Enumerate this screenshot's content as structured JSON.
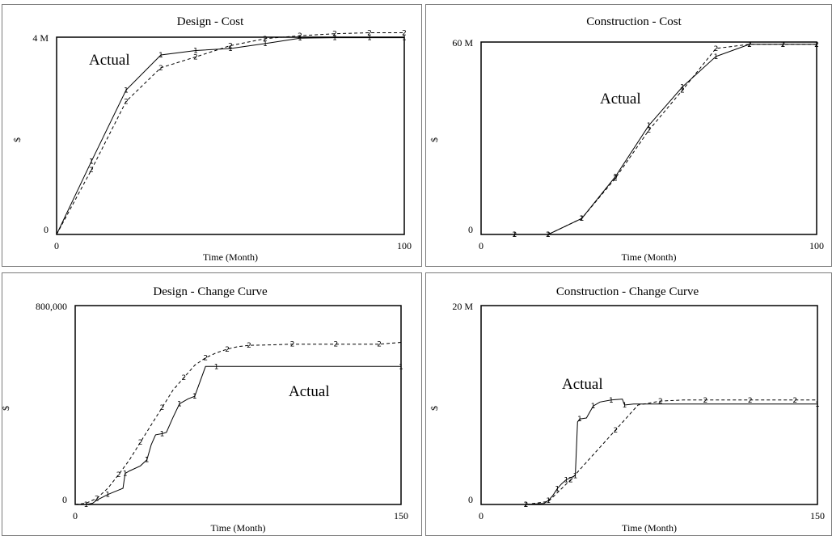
{
  "chart_data": [
    {
      "type": "line",
      "title": "Design - Cost",
      "xlabel": "Time (Month)",
      "ylabel": "$",
      "xlim": [
        0,
        100
      ],
      "ylim": [
        0,
        4000000
      ],
      "x_tick_labels": [
        "0",
        "100"
      ],
      "y_tick_labels": [
        "0",
        "4 M"
      ],
      "annotation": "Actual",
      "series": [
        {
          "marker": "1",
          "style": "solid",
          "x": [
            0,
            10,
            20,
            30,
            40,
            50,
            60,
            70,
            80,
            90,
            100
          ],
          "y": [
            0,
            1480000,
            2930000,
            3640000,
            3730000,
            3770000,
            3870000,
            3980000,
            3990000,
            3990000,
            3990000
          ]
        },
        {
          "marker": "2",
          "style": "dashed",
          "x": [
            0,
            10,
            20,
            30,
            40,
            50,
            60,
            70,
            80,
            90,
            100
          ],
          "y": [
            0,
            1310000,
            2700000,
            3380000,
            3600000,
            3830000,
            3970000,
            4030000,
            4070000,
            4090000,
            4090000
          ]
        }
      ]
    },
    {
      "type": "line",
      "title": "Construction - Cost",
      "xlabel": "Time (Month)",
      "ylabel": "$",
      "xlim": [
        0,
        100
      ],
      "ylim": [
        0,
        60000000
      ],
      "x_tick_labels": [
        "0",
        "100"
      ],
      "y_tick_labels": [
        "0",
        "60 M"
      ],
      "annotation": "Actual",
      "series": [
        {
          "marker": "1",
          "style": "solid",
          "x": [
            0,
            10,
            20,
            30,
            40,
            50,
            60,
            70,
            80,
            90,
            100
          ],
          "y": [
            0,
            0,
            0,
            5000000,
            18000000,
            34000000,
            46000000,
            55500000,
            59300000,
            59300000,
            59300000
          ]
        },
        {
          "marker": "2",
          "style": "dashed",
          "x": [
            0,
            10,
            20,
            30,
            40,
            50,
            60,
            70,
            80,
            90,
            100
          ],
          "y": [
            0,
            0,
            0,
            5000000,
            17500000,
            32500000,
            45000000,
            58000000,
            59300000,
            59300000,
            59300000
          ]
        }
      ]
    },
    {
      "type": "line",
      "title": "Design - Change Curve",
      "xlabel": "Time (Month)",
      "ylabel": "$",
      "xlim": [
        0,
        150
      ],
      "ylim": [
        0,
        800000
      ],
      "x_tick_labels": [
        "0",
        "150"
      ],
      "y_tick_labels": [
        "0",
        "800,000"
      ],
      "annotation": "Actual",
      "series": [
        {
          "marker": "1",
          "style": "solid",
          "x": [
            0,
            5,
            8,
            10,
            15,
            20,
            22,
            23,
            25,
            30,
            33,
            35,
            37,
            40,
            42,
            45,
            48,
            50,
            52,
            55,
            60,
            61,
            65,
            70,
            75,
            150
          ],
          "y": [
            0,
            0,
            5000,
            18000,
            40000,
            58000,
            65000,
            125000,
            135000,
            155000,
            180000,
            240000,
            280000,
            285000,
            290000,
            350000,
            405000,
            415000,
            425000,
            435000,
            555000,
            555000,
            555000,
            555000,
            555000,
            555000
          ]
        },
        {
          "marker": "2",
          "style": "dashed",
          "x": [
            0,
            5,
            10,
            15,
            20,
            25,
            30,
            35,
            40,
            45,
            50,
            55,
            60,
            65,
            70,
            75,
            80,
            90,
            100,
            110,
            120,
            130,
            140,
            150
          ],
          "y": [
            0,
            5000,
            25000,
            65000,
            120000,
            180000,
            250000,
            320000,
            390000,
            460000,
            510000,
            560000,
            590000,
            610000,
            625000,
            635000,
            640000,
            642000,
            645000,
            645000,
            645000,
            645000,
            645000,
            652000
          ]
        }
      ]
    },
    {
      "type": "line",
      "title": "Construction - Change Curve",
      "xlabel": "Time (Month)",
      "ylabel": "$",
      "xlim": [
        0,
        150
      ],
      "ylim": [
        0,
        20000000
      ],
      "x_tick_labels": [
        "0",
        "150"
      ],
      "y_tick_labels": [
        "0",
        "20 M"
      ],
      "annotation": "Actual",
      "series": [
        {
          "marker": "1",
          "style": "solid",
          "x": [
            0,
            20,
            28,
            30,
            32,
            34,
            36,
            38,
            40,
            42,
            43,
            44,
            47,
            50,
            53,
            58,
            63,
            64,
            68,
            150
          ],
          "y": [
            0,
            0,
            100000,
            400000,
            900000,
            1600000,
            2100000,
            2500000,
            2700000,
            2900000,
            8300000,
            8600000,
            8700000,
            9900000,
            10300000,
            10500000,
            10600000,
            10000000,
            10100000,
            10100000
          ]
        },
        {
          "marker": "2",
          "style": "dashed",
          "x": [
            0,
            10,
            20,
            30,
            40,
            50,
            60,
            70,
            80,
            90,
            100,
            110,
            120,
            130,
            140,
            150
          ],
          "y": [
            0,
            0,
            0,
            300000,
            2500000,
            5000000,
            7500000,
            10000000,
            10400000,
            10500000,
            10500000,
            10500000,
            10500000,
            10500000,
            10500000,
            10500000
          ]
        }
      ]
    }
  ]
}
